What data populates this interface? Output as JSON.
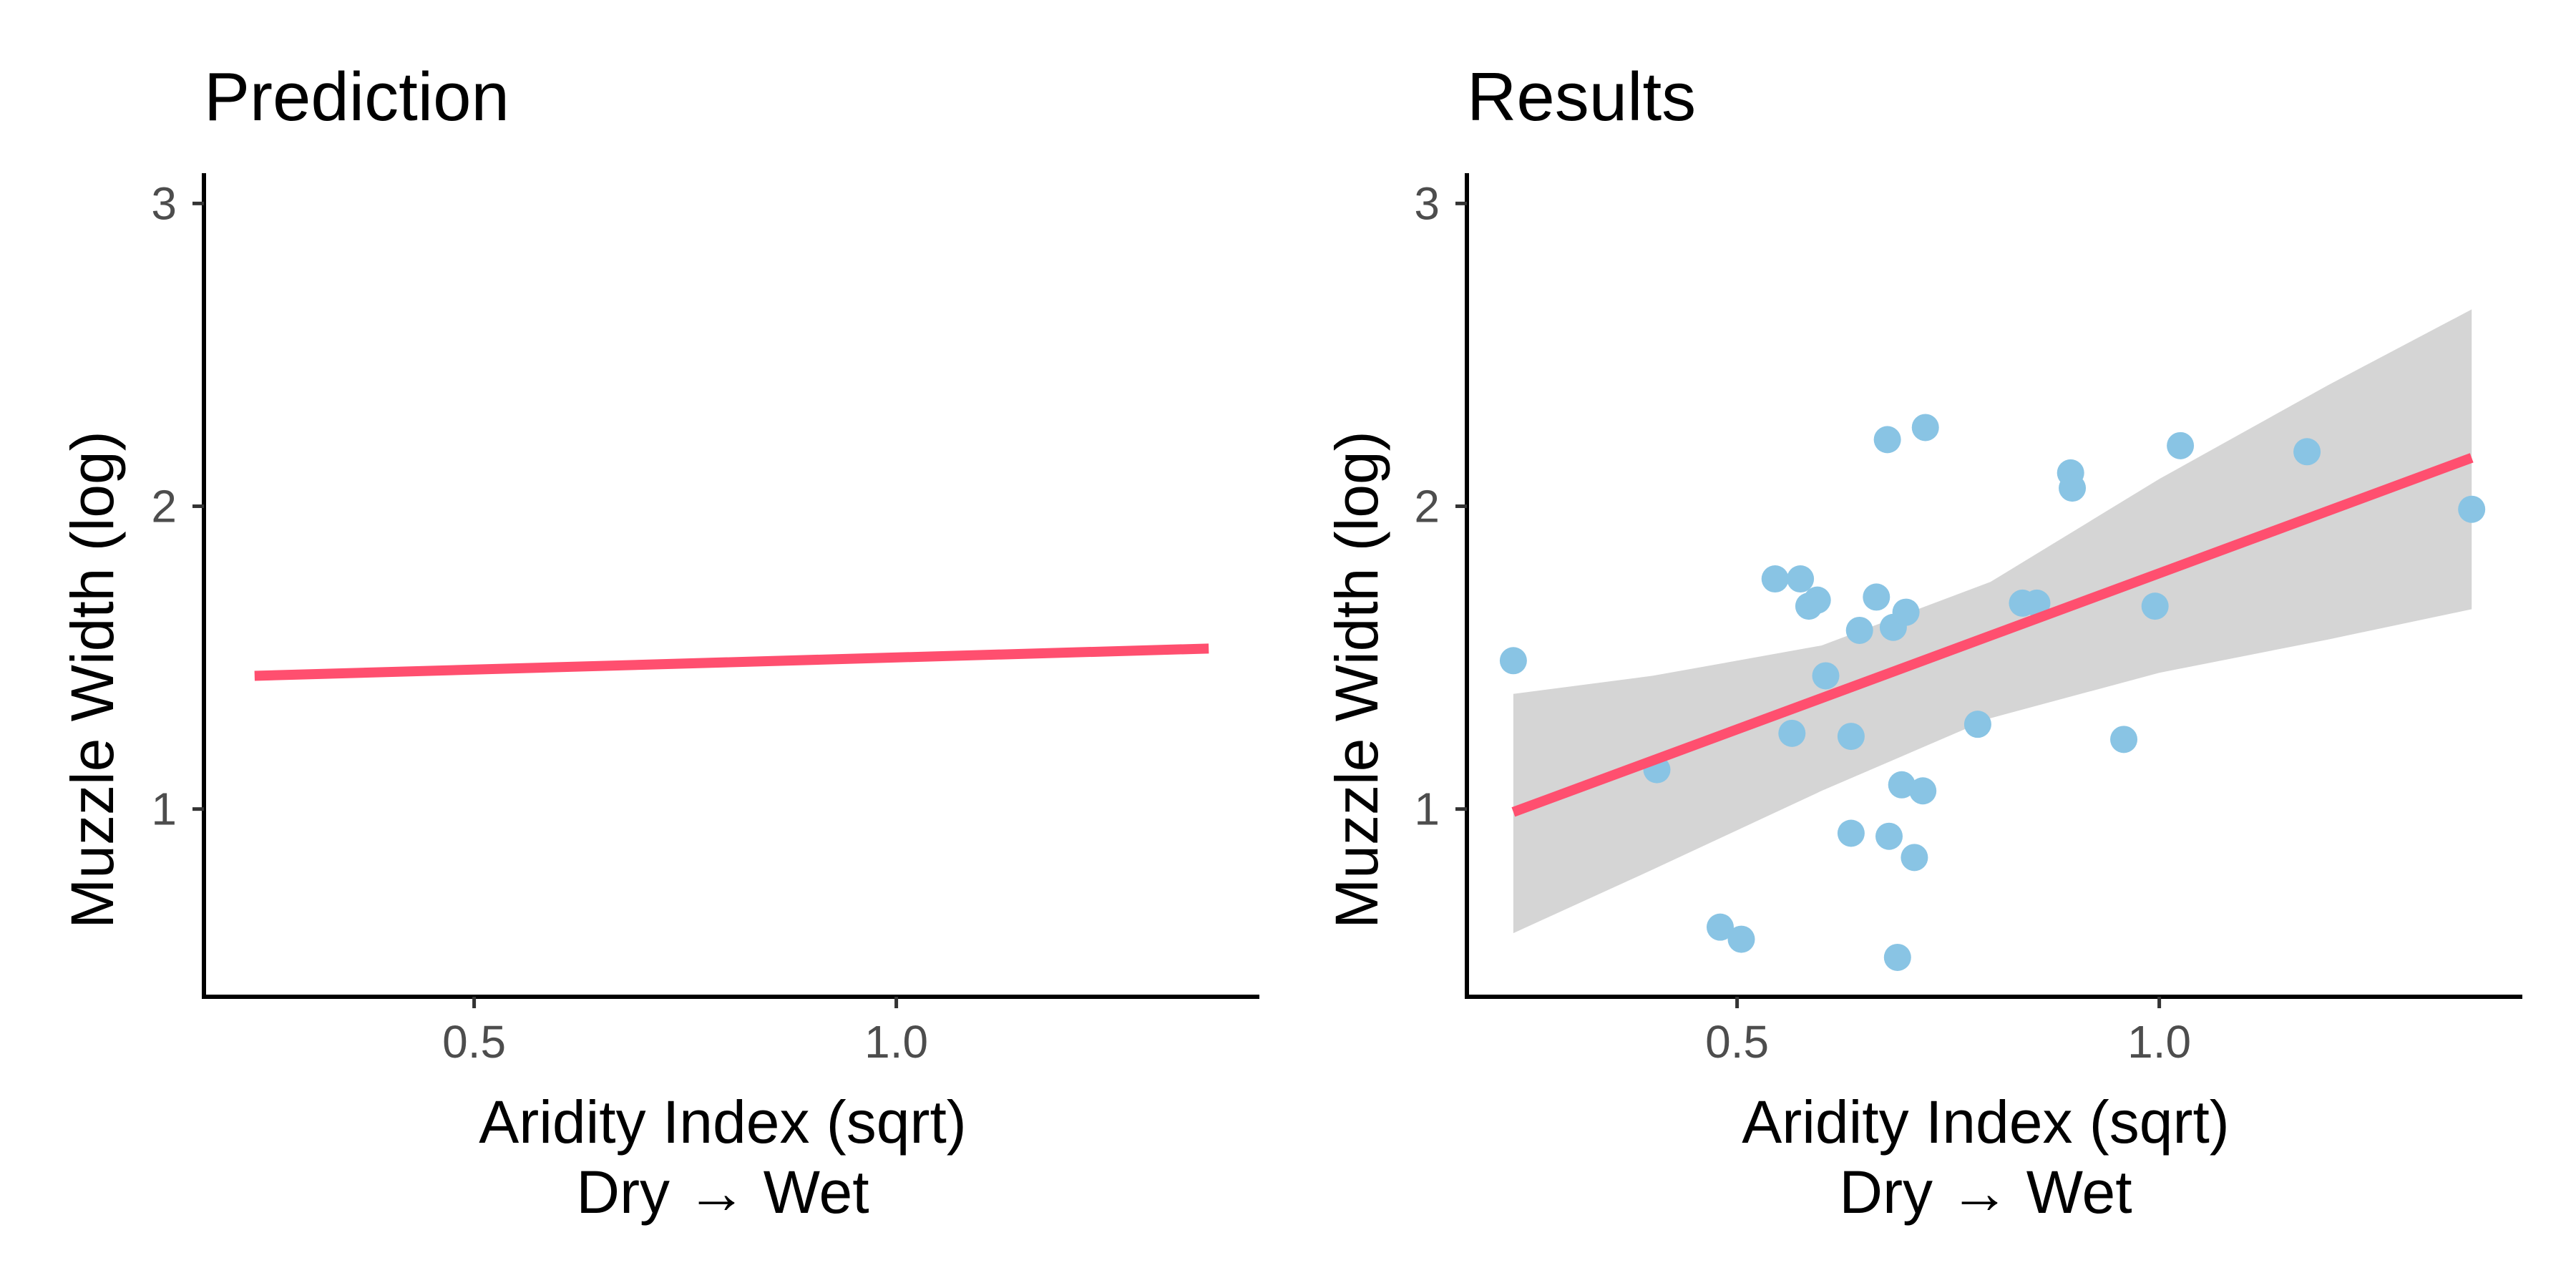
{
  "chart_data": [
    {
      "type": "line",
      "title": "Prediction",
      "xlabel": "Aridity Index (sqrt)",
      "xlabel_line2": "Dry → Wet",
      "ylabel": "Muzzle Width (log)",
      "xlim": [
        0.18,
        1.43
      ],
      "ylim": [
        0.38,
        3.1
      ],
      "xticks": [
        0.5,
        1.0
      ],
      "xtick_labels": [
        "0.5",
        "1.0"
      ],
      "yticks": [
        1,
        2,
        3
      ],
      "ytick_labels": [
        "1",
        "2",
        "3"
      ],
      "line": {
        "x": [
          0.24,
          1.37
        ],
        "y": [
          1.44,
          1.53
        ]
      },
      "line_color": "#ff4f6f",
      "grid": false
    },
    {
      "type": "scatter",
      "title": "Results",
      "xlabel": "Aridity Index (sqrt)",
      "xlabel_line2": "Dry → Wet",
      "ylabel": "Muzzle Width (log)",
      "xlim": [
        0.18,
        1.43
      ],
      "ylim": [
        0.38,
        3.1
      ],
      "xticks": [
        0.5,
        1.0
      ],
      "xtick_labels": [
        "0.5",
        "1.0"
      ],
      "yticks": [
        1,
        2,
        3
      ],
      "ytick_labels": [
        "1",
        "2",
        "3"
      ],
      "points": [
        {
          "x": 0.235,
          "y": 1.49
        },
        {
          "x": 0.405,
          "y": 1.13
        },
        {
          "x": 0.48,
          "y": 0.61
        },
        {
          "x": 0.505,
          "y": 0.57
        },
        {
          "x": 0.545,
          "y": 1.76
        },
        {
          "x": 0.565,
          "y": 1.25
        },
        {
          "x": 0.575,
          "y": 1.76
        },
        {
          "x": 0.585,
          "y": 1.67
        },
        {
          "x": 0.595,
          "y": 1.69
        },
        {
          "x": 0.605,
          "y": 1.44
        },
        {
          "x": 0.635,
          "y": 1.24
        },
        {
          "x": 0.635,
          "y": 0.92
        },
        {
          "x": 0.645,
          "y": 1.59
        },
        {
          "x": 0.665,
          "y": 1.7
        },
        {
          "x": 0.678,
          "y": 2.22
        },
        {
          "x": 0.68,
          "y": 0.91
        },
        {
          "x": 0.685,
          "y": 1.6
        },
        {
          "x": 0.69,
          "y": 0.51
        },
        {
          "x": 0.695,
          "y": 1.08
        },
        {
          "x": 0.7,
          "y": 1.65
        },
        {
          "x": 0.71,
          "y": 0.84
        },
        {
          "x": 0.72,
          "y": 1.06
        },
        {
          "x": 0.723,
          "y": 2.26
        },
        {
          "x": 0.785,
          "y": 1.28
        },
        {
          "x": 0.838,
          "y": 1.68
        },
        {
          "x": 0.855,
          "y": 1.68
        },
        {
          "x": 0.895,
          "y": 2.11
        },
        {
          "x": 0.897,
          "y": 2.06
        },
        {
          "x": 0.958,
          "y": 1.23
        },
        {
          "x": 0.995,
          "y": 1.67
        },
        {
          "x": 1.025,
          "y": 2.2
        },
        {
          "x": 1.175,
          "y": 2.18
        },
        {
          "x": 1.37,
          "y": 1.99
        }
      ],
      "fit_line": {
        "x": [
          0.235,
          1.37
        ],
        "y": [
          0.99,
          2.16
        ]
      },
      "confidence_band": {
        "x": [
          0.235,
          0.4,
          0.6,
          0.8,
          1.0,
          1.2,
          1.37
        ],
        "lower": [
          0.59,
          0.8,
          1.06,
          1.3,
          1.45,
          1.56,
          1.66
        ],
        "upper": [
          1.38,
          1.44,
          1.54,
          1.75,
          2.09,
          2.4,
          2.65
        ]
      },
      "point_color": "#89c4e4",
      "line_color": "#ff4f6f",
      "band_color": "#d5d5d5",
      "grid": false
    }
  ]
}
